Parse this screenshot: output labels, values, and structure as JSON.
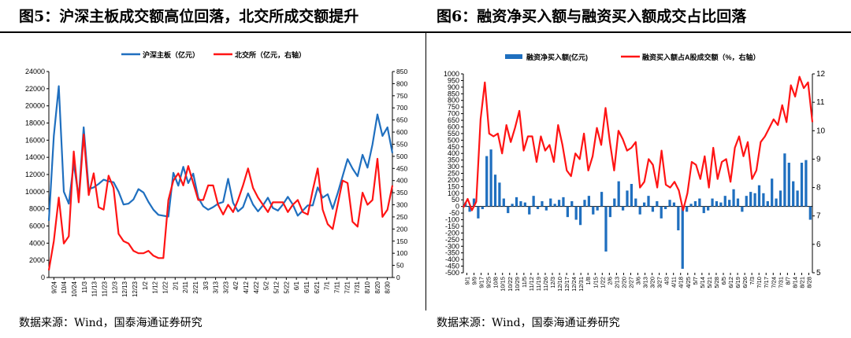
{
  "left": {
    "title": "图5：沪深主板成交额高位回落，北交所成交额提升",
    "source": "数据来源：Wind，国泰海通证券研究",
    "chart_data": {
      "type": "line",
      "series": [
        {
          "name": "沪深主板（亿元）",
          "axis": "left",
          "color": "#1f6fbf",
          "values": [
            6600,
            16500,
            22300,
            10000,
            8600,
            13300,
            9300,
            17500,
            10300,
            10500,
            10900,
            11400,
            11200,
            11100,
            10000,
            8500,
            8600,
            9100,
            10300,
            9900,
            8800,
            7900,
            7300,
            7200,
            7100,
            12200,
            10700,
            12900,
            11000,
            12100,
            9300,
            8300,
            7900,
            8200,
            8600,
            8800,
            11500,
            8700,
            7700,
            8200,
            9800,
            8500,
            7700,
            8400,
            9300,
            8100,
            7800,
            8500,
            9400,
            8500,
            7200,
            7800,
            8400,
            8400,
            10500,
            9300,
            9700,
            8000,
            9800,
            11800,
            13800,
            12700,
            11800,
            14300,
            12800,
            15500,
            19000,
            16500,
            17500,
            14500
          ]
        },
        {
          "name": "北交所（亿元，右轴）",
          "axis": "right",
          "color": "#ff1414",
          "values": [
            30,
            150,
            330,
            140,
            170,
            520,
            310,
            590,
            340,
            430,
            290,
            280,
            420,
            370,
            180,
            150,
            140,
            110,
            100,
            100,
            110,
            90,
            80,
            80,
            320,
            400,
            430,
            380,
            460,
            390,
            320,
            320,
            380,
            380,
            300,
            260,
            300,
            270,
            320,
            380,
            450,
            370,
            330,
            300,
            270,
            310,
            310,
            310,
            270,
            300,
            320,
            270,
            260,
            360,
            450,
            280,
            220,
            200,
            300,
            400,
            390,
            230,
            210,
            350,
            300,
            320,
            490,
            250,
            280,
            380
          ]
        }
      ],
      "legend": [
        "沪深主板（亿元）",
        "北交所（亿元，右轴）"
      ],
      "y_left": {
        "min": 0,
        "max": 24000,
        "step": 2000,
        "ticks": [
          "0",
          "2000",
          "4000",
          "6000",
          "8000",
          "10000",
          "12000",
          "14000",
          "16000",
          "18000",
          "20000",
          "22000",
          "24000"
        ]
      },
      "y_right": {
        "min": 0,
        "max": 850,
        "step": 50,
        "ticks": [
          "0",
          "50",
          "100",
          "150",
          "200",
          "250",
          "300",
          "350",
          "400",
          "450",
          "500",
          "550",
          "600",
          "650",
          "700",
          "750",
          "800",
          "850"
        ]
      },
      "x_ticks": [
        "9/24",
        "10/4",
        "10/24",
        "11/3",
        "11/13",
        "11/23",
        "12/3",
        "12/13",
        "12/23",
        "1/2",
        "1/12",
        "1/22",
        "2/1",
        "2/11",
        "2/21",
        "3/3",
        "3/13",
        "3/23",
        "4/2",
        "4/12",
        "4/22",
        "5/2",
        "5/12",
        "5/22",
        "6/1",
        "6/11",
        "6/21",
        "7/1",
        "7/11",
        "7/21",
        "7/31",
        "8/10",
        "8/20",
        "8/30"
      ]
    }
  },
  "right": {
    "title": "图6：融资净买入额与融资买入额成交占比回落",
    "source": "数据来源：Wind，国泰海通证券研究",
    "chart_data": {
      "type": "bar",
      "series": [
        {
          "name": "融资净买入额(亿元)",
          "axis": "left",
          "color": "#1f6fbf",
          "values": [
            30,
            -40,
            60,
            -90,
            -20,
            380,
            430,
            240,
            180,
            60,
            -50,
            20,
            70,
            40,
            30,
            -60,
            80,
            -20,
            40,
            -30,
            60,
            20,
            50,
            70,
            -80,
            40,
            -100,
            -140,
            50,
            80,
            -60,
            -30,
            110,
            -340,
            -80,
            60,
            190,
            -30,
            120,
            170,
            60,
            -60,
            30,
            80,
            -40,
            40,
            -90,
            -20,
            50,
            30,
            -180,
            -470,
            -40,
            20,
            40,
            60,
            -50,
            -30,
            60,
            40,
            30,
            80,
            50,
            130,
            60,
            -40,
            80,
            110,
            100,
            160,
            100,
            40,
            210,
            60,
            120,
            400,
            330,
            190,
            120,
            330,
            350,
            -100
          ]
        },
        {
          "name": "融资买入额占A股成交额（%，右轴）",
          "axis": "right",
          "color": "#ff1414",
          "values": [
            7.3,
            7.6,
            7.2,
            7.5,
            10.4,
            11.7,
            9.9,
            9.8,
            9.9,
            9.2,
            10.2,
            9.6,
            10.1,
            10.7,
            9.3,
            9.8,
            9.8,
            8.9,
            9.8,
            9.3,
            9.5,
            8.9,
            10.2,
            9.5,
            8.6,
            8.4,
            9.2,
            9.0,
            9.9,
            8.6,
            9.1,
            10.1,
            9.5,
            10.8,
            9.6,
            8.6,
            10.0,
            9.7,
            9.3,
            9.4,
            9.6,
            8.0,
            8.2,
            9.0,
            8.8,
            8.0,
            9.3,
            8.1,
            8.0,
            8.2,
            7.9,
            7.2,
            7.8,
            8.9,
            8.8,
            8.3,
            9.1,
            8.0,
            9.4,
            8.3,
            8.9,
            9.0,
            8.2,
            9.4,
            9.8,
            9.1,
            9.6,
            8.3,
            8.6,
            9.6,
            9.8,
            10.1,
            10.4,
            10.2,
            10.9,
            10.3,
            11.6,
            11.2,
            11.9,
            11.5,
            11.7,
            10.3
          ]
        }
      ],
      "legend": [
        "融资净买入额(亿元)",
        "融资买入额占A股成交额（%，右轴）"
      ],
      "y_left": {
        "min": -500,
        "max": 1000,
        "step": 50,
        "ticks": [
          "-500",
          "-450",
          "-400",
          "-350",
          "-300",
          "-250",
          "-200",
          "-150",
          "-100",
          "-50",
          "0",
          "50",
          "100",
          "150",
          "200",
          "250",
          "300",
          "350",
          "400",
          "450",
          "500",
          "550",
          "600",
          "650",
          "700",
          "750",
          "800",
          "850",
          "900",
          "950",
          "1000"
        ]
      },
      "y_right": {
        "min": 5,
        "max": 12,
        "step": 1,
        "ticks": [
          "5",
          "6",
          "7",
          "8",
          "9",
          "10",
          "11",
          "12"
        ]
      },
      "x_ticks": [
        "9/1",
        "9/9",
        "9/17",
        "9/25",
        "10/8",
        "10/15",
        "10/22",
        "10/29",
        "11/5",
        "11/12",
        "11/19",
        "11/26",
        "12/3",
        "12/10",
        "12/17",
        "12/24",
        "12/31",
        "1/8",
        "1/15",
        "1/22",
        "2/6",
        "2/13",
        "2/20",
        "2/27",
        "3/6",
        "3/13",
        "3/20",
        "3/27",
        "4/3",
        "4/11",
        "4/18",
        "4/25",
        "5/7",
        "5/14",
        "5/21",
        "5/28",
        "6/5",
        "6/12",
        "6/19",
        "6/26",
        "7/3",
        "7/10",
        "7/17",
        "7/24",
        "7/31",
        "8/7",
        "8/14",
        "8/21",
        "8/28"
      ]
    }
  }
}
